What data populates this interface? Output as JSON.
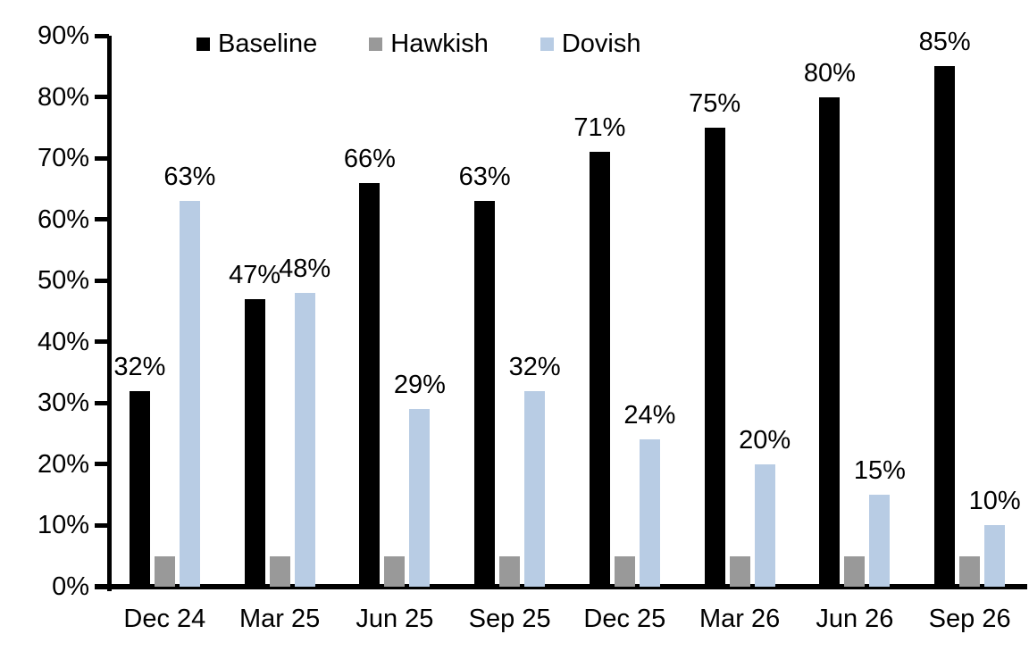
{
  "chart_data": {
    "type": "bar",
    "title": "",
    "xlabel": "",
    "ylabel": "",
    "categories": [
      "Dec 24",
      "Mar 25",
      "Jun 25",
      "Sep 25",
      "Dec 25",
      "Mar 26",
      "Jun 26",
      "Sep 26"
    ],
    "series": [
      {
        "name": "Baseline",
        "color": "#000000",
        "values": [
          32,
          47,
          66,
          63,
          71,
          75,
          80,
          85
        ],
        "labels": [
          "32%",
          "47%",
          "66%",
          "63%",
          "71%",
          "75%",
          "80%",
          "85%"
        ]
      },
      {
        "name": "Hawkish",
        "color": "#999999",
        "values": [
          5,
          5,
          5,
          5,
          5,
          5,
          5,
          5
        ],
        "labels": [
          "",
          "",
          "",
          "",
          "",
          "",
          "",
          ""
        ]
      },
      {
        "name": "Dovish",
        "color": "#B8CCE4",
        "values": [
          63,
          48,
          29,
          32,
          24,
          20,
          15,
          10
        ],
        "labels": [
          "63%",
          "48%",
          "29%",
          "32%",
          "24%",
          "20%",
          "15%",
          "10%"
        ]
      }
    ],
    "ylim": [
      0,
      90
    ],
    "ytick_step": 10,
    "yticks": [
      "0%",
      "10%",
      "20%",
      "30%",
      "40%",
      "50%",
      "60%",
      "70%",
      "80%",
      "90%"
    ],
    "legend": {
      "position": "top",
      "items": [
        "Baseline",
        "Hawkish",
        "Dovish"
      ]
    },
    "grid": false,
    "axis_color": "#000000",
    "background": "#FFFFFF"
  }
}
